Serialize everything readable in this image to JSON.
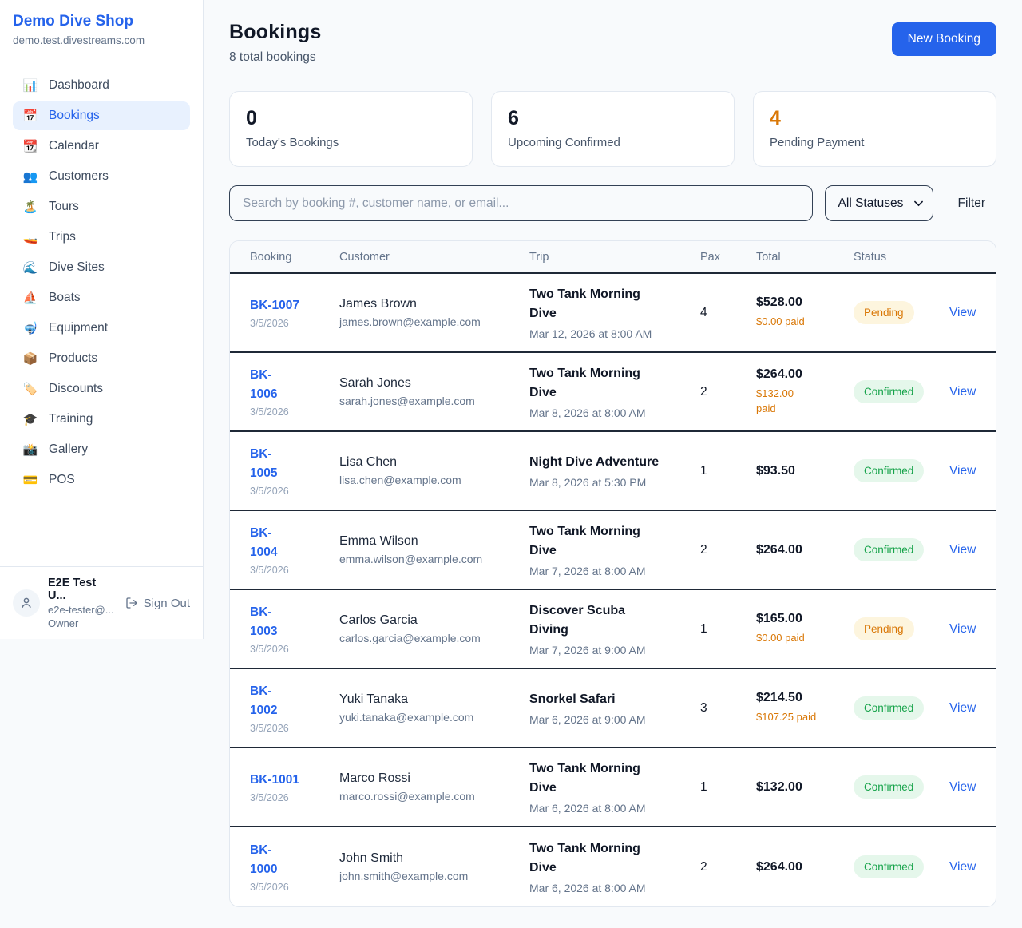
{
  "sidebar": {
    "brand": {
      "name": "Demo Dive Shop",
      "domain": "demo.test.divestreams.com"
    },
    "items": [
      {
        "icon": "bar-chart-icon",
        "emoji": "📊",
        "label": "Dashboard",
        "active": false
      },
      {
        "icon": "calendar-date-icon",
        "emoji": "📅",
        "label": "Bookings",
        "active": true
      },
      {
        "icon": "tear-off-calendar-icon",
        "emoji": "📆",
        "label": "Calendar",
        "active": false
      },
      {
        "icon": "people-icon",
        "emoji": "👥",
        "label": "Customers",
        "active": false
      },
      {
        "icon": "island-icon",
        "emoji": "🏝️",
        "label": "Tours",
        "active": false
      },
      {
        "icon": "speedboat-icon",
        "emoji": "🚤",
        "label": "Trips",
        "active": false
      },
      {
        "icon": "wave-icon",
        "emoji": "🌊",
        "label": "Dive Sites",
        "active": false
      },
      {
        "icon": "sailboat-icon",
        "emoji": "⛵",
        "label": "Boats",
        "active": false
      },
      {
        "icon": "diving-mask-icon",
        "emoji": "🤿",
        "label": "Equipment",
        "active": false
      },
      {
        "icon": "package-icon",
        "emoji": "📦",
        "label": "Products",
        "active": false
      },
      {
        "icon": "tag-icon",
        "emoji": "🏷️",
        "label": "Discounts",
        "active": false
      },
      {
        "icon": "graduation-cap-icon",
        "emoji": "🎓",
        "label": "Training",
        "active": false
      },
      {
        "icon": "camera-icon",
        "emoji": "📸",
        "label": "Gallery",
        "active": false
      },
      {
        "icon": "credit-card-icon",
        "emoji": "💳",
        "label": "POS",
        "active": false
      }
    ],
    "user": {
      "name": "E2E Test U...",
      "email": "e2e-tester@...",
      "role": "Owner",
      "sign_out": "Sign Out"
    }
  },
  "header": {
    "title": "Bookings",
    "subtitle": "8 total bookings",
    "new_booking": "New Booking"
  },
  "stats": [
    {
      "value": "0",
      "label": "Today's Bookings",
      "accent": false
    },
    {
      "value": "6",
      "label": "Upcoming Confirmed",
      "accent": false
    },
    {
      "value": "4",
      "label": "Pending Payment",
      "accent": true
    }
  ],
  "filters": {
    "search_placeholder": "Search by booking #, customer name, or email...",
    "status_select": "All Statuses",
    "filter_label": "Filter"
  },
  "table": {
    "columns": [
      "Booking",
      "Customer",
      "Trip",
      "Pax",
      "Total",
      "Status"
    ],
    "rows": [
      {
        "number": "BK-1007",
        "two_line_number": false,
        "date": "3/5/2026",
        "customer": "James Brown",
        "email": "james.brown@example.com",
        "trip": "Two Tank Morning Dive",
        "two_line_trip": true,
        "trip_datetime": "Mar 12, 2026 at 8:00 AM",
        "pax": "4",
        "total": "$528.00",
        "paid": "$0.00 paid",
        "two_line_paid": false,
        "status": "Pending",
        "action": "View"
      },
      {
        "number": "BK-1006",
        "two_line_number": true,
        "date": "3/5/2026",
        "customer": "Sarah Jones",
        "email": "sarah.jones@example.com",
        "trip": "Two Tank Morning Dive",
        "two_line_trip": true,
        "trip_datetime": "Mar 8, 2026 at 8:00 AM",
        "pax": "2",
        "total": "$264.00",
        "paid": "$132.00 paid",
        "two_line_paid": true,
        "status": "Confirmed",
        "action": "View"
      },
      {
        "number": "BK-1005",
        "two_line_number": true,
        "date": "3/5/2026",
        "customer": "Lisa Chen",
        "email": "lisa.chen@example.com",
        "trip": "Night Dive Adventure",
        "two_line_trip": false,
        "trip_datetime": "Mar 8, 2026 at 5:30 PM",
        "pax": "1",
        "total": "$93.50",
        "paid": null,
        "two_line_paid": false,
        "status": "Confirmed",
        "action": "View"
      },
      {
        "number": "BK-1004",
        "two_line_number": true,
        "date": "3/5/2026",
        "customer": "Emma Wilson",
        "email": "emma.wilson@example.com",
        "trip": "Two Tank Morning Dive",
        "two_line_trip": true,
        "trip_datetime": "Mar 7, 2026 at 8:00 AM",
        "pax": "2",
        "total": "$264.00",
        "paid": null,
        "two_line_paid": false,
        "status": "Confirmed",
        "action": "View"
      },
      {
        "number": "BK-1003",
        "two_line_number": true,
        "date": "3/5/2026",
        "customer": "Carlos Garcia",
        "email": "carlos.garcia@example.com",
        "trip": "Discover Scuba Diving",
        "two_line_trip": true,
        "trip_datetime": "Mar 7, 2026 at 9:00 AM",
        "pax": "1",
        "total": "$165.00",
        "paid": "$0.00 paid",
        "two_line_paid": false,
        "status": "Pending",
        "action": "View"
      },
      {
        "number": "BK-1002",
        "two_line_number": true,
        "date": "3/5/2026",
        "customer": "Yuki Tanaka",
        "email": "yuki.tanaka@example.com",
        "trip": "Snorkel Safari",
        "two_line_trip": false,
        "trip_datetime": "Mar 6, 2026 at 9:00 AM",
        "pax": "3",
        "total": "$214.50",
        "paid": "$107.25 paid",
        "two_line_paid": false,
        "status": "Confirmed",
        "action": "View"
      },
      {
        "number": "BK-1001",
        "two_line_number": false,
        "date": "3/5/2026",
        "customer": "Marco Rossi",
        "email": "marco.rossi@example.com",
        "trip": "Two Tank Morning Dive",
        "two_line_trip": true,
        "trip_datetime": "Mar 6, 2026 at 8:00 AM",
        "pax": "1",
        "total": "$132.00",
        "paid": null,
        "two_line_paid": false,
        "status": "Confirmed",
        "action": "View"
      },
      {
        "number": "BK-1000",
        "two_line_number": true,
        "date": "3/5/2026",
        "customer": "John Smith",
        "email": "john.smith@example.com",
        "trip": "Two Tank Morning Dive",
        "two_line_trip": true,
        "trip_datetime": "Mar 6, 2026 at 8:00 AM",
        "pax": "2",
        "total": "$264.00",
        "paid": null,
        "two_line_paid": false,
        "status": "Confirmed",
        "action": "View"
      }
    ]
  },
  "colors": {
    "brand_blue": "#2563eb",
    "accent_orange": "#d97706",
    "confirmed_green": "#16a34a",
    "pending_badge_bg": "#fdf5de",
    "confirmed_badge_bg": "#e5f7eb",
    "page_bg": "#f8fafc",
    "row_divider": "#1f2937"
  }
}
